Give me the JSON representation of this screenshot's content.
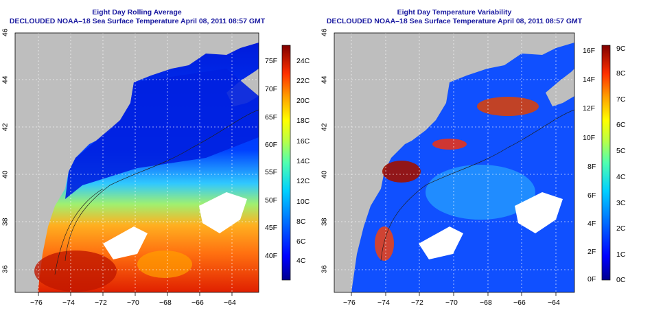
{
  "panels": [
    {
      "title_line1": "Eight Day Rolling Average",
      "title_line2": "DECLOUDED NOAA–18 Sea Surface Temperature April 08, 2011 08:57 GMT",
      "x_ticks": [
        "−76",
        "−74",
        "−72",
        "−70",
        "−68",
        "−66",
        "−64"
      ],
      "y_ticks": [
        "36",
        "38",
        "40",
        "42",
        "44",
        "46"
      ],
      "colorbar_left_labels": [
        "4C",
        "6C",
        "8C",
        "10C",
        "12C",
        "14C",
        "16C",
        "18C",
        "20C",
        "22C",
        "24C"
      ],
      "colorbar_right_labels": [
        "40F",
        "45F",
        "50F",
        "55F",
        "60F",
        "65F",
        "70F",
        "75F"
      ],
      "colorbar_colors": [
        "#00008f",
        "#0000ff",
        "#0060ff",
        "#00c0ff",
        "#40ffc0",
        "#a0ff60",
        "#ffff00",
        "#ffa000",
        "#ff4000",
        "#c00000",
        "#800000"
      ]
    },
    {
      "title_line1": "Eight Day Temperature Variability",
      "title_line2": "DECLOUDED NOAA–18 Sea Surface Temperature April 08, 2011 08:57 GMT",
      "x_ticks": [
        "−76",
        "−74",
        "−72",
        "−70",
        "−68",
        "−66",
        "−64"
      ],
      "y_ticks": [
        "36",
        "38",
        "40",
        "42",
        "44",
        "46"
      ],
      "colorbar_left_labels": [
        "0F",
        "2F",
        "4F",
        "6F",
        "8F",
        "10F",
        "12F",
        "14F",
        "16F"
      ],
      "colorbar_right_labels": [
        "0C",
        "1C",
        "2C",
        "3C",
        "4C",
        "5C",
        "6C",
        "7C",
        "8C",
        "9C"
      ],
      "colorbar_colors": [
        "#00008f",
        "#0000ff",
        "#0060ff",
        "#00c0ff",
        "#40ffc0",
        "#a0ff60",
        "#ffff00",
        "#ffa000",
        "#ff4000",
        "#c00000",
        "#800000"
      ]
    }
  ],
  "colors": {
    "land": "#bebebe",
    "title": "#1a1aa0",
    "cloud_mask": "#ffffff"
  }
}
